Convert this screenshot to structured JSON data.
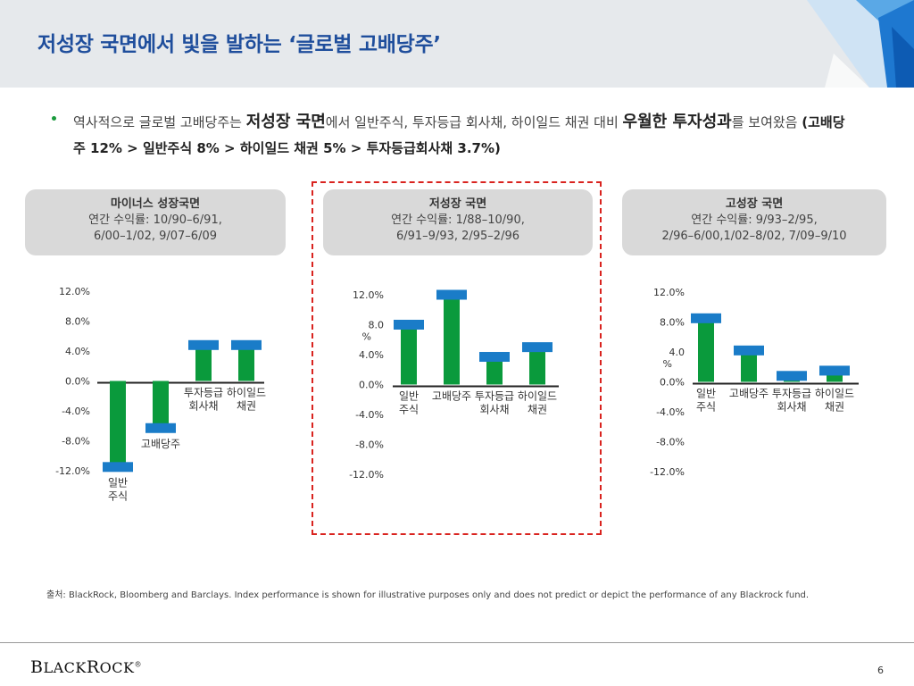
{
  "slide": {
    "title": "저성장 국면에서 빛을 발하는 ‘글로벌 고배당주’",
    "bullet": {
      "t1": "역사적으로 글로벌 고배당주는 ",
      "t2": "저성장 국면",
      "t3": "에서 일반주식, 투자등급 회사채, 하이일드 채권 대비 ",
      "t4": "우월한 투자성과",
      "t5": "를 보여왔음 ",
      "t6": "(고배당주 12% > 일반주식 8% > 하이일드 채권 5% > 투자등급회사채 3.7%)"
    },
    "source": "출처: BlackRock, Bloomberg and Barclays. Index performance is shown for illustrative purposes only and does not predict or depict the performance of any Blackrock fund.",
    "logo": {
      "b": "B",
      "lack": "LACK",
      "r": "R",
      "ock": "OCK",
      "reg": "®"
    },
    "page_number": "6"
  },
  "colors": {
    "bar": "#0a9a3c",
    "cap": "#1a7cc8",
    "title": "#1f4e9c",
    "highlight": "#d9231f"
  },
  "chart_data": [
    {
      "type": "bar",
      "header": "마이너스 성장국면",
      "subheader": "연간 수익률: 10/90–6/91,",
      "subheader2": "6/00–1/02, 9/07–6/09",
      "ytick_labels": [
        "12.0%",
        "8.0%",
        "4.0%",
        "0.0%",
        "-4.0%",
        "-8.0%",
        "-12.0%"
      ],
      "ylim": [
        -12,
        12
      ],
      "categories": [
        [
          "일반",
          "주식"
        ],
        [
          "고배당주"
        ],
        [
          "투자등급",
          "회사채"
        ],
        [
          "하이일드",
          "채권"
        ]
      ],
      "values": [
        -11.5,
        -6.3,
        4.8,
        4.8
      ]
    },
    {
      "type": "bar",
      "header": "저성장 국면",
      "subheader": "연간 수익률: 1/88–10/90,",
      "subheader2": "6/91–9/93, 2/95–2/96",
      "ytick_labels": [
        "12.0%",
        "8.0 %",
        "4.0%",
        "0.0%",
        "-4.0%",
        "-8.0%",
        "-12.0%"
      ],
      "ylim": [
        -12,
        12
      ],
      "categories": [
        [
          "일반",
          "주식"
        ],
        [
          "고배당주"
        ],
        [
          "투자등급",
          "회사채"
        ],
        [
          "하이일드",
          "채권"
        ]
      ],
      "values": [
        8,
        12,
        3.7,
        5
      ]
    },
    {
      "type": "bar",
      "header": "고성장 국면",
      "subheader": "연간 수익률: 9/93–2/95,",
      "subheader2": "2/96–6/00,1/02–8/02, 7/09–9/10",
      "ytick_labels": [
        "12.0%",
        "8.0%",
        "4.0 %",
        "0.0%",
        "-4.0%",
        "-8.0%",
        "-12.0%"
      ],
      "ylim": [
        -12,
        12
      ],
      "categories": [
        [
          "일반",
          "주식"
        ],
        [
          "고배당주"
        ],
        [
          "투자등급",
          "회사채"
        ],
        [
          "하이일드",
          "채권"
        ]
      ],
      "values": [
        8.5,
        4.2,
        0.8,
        1.5
      ]
    }
  ]
}
